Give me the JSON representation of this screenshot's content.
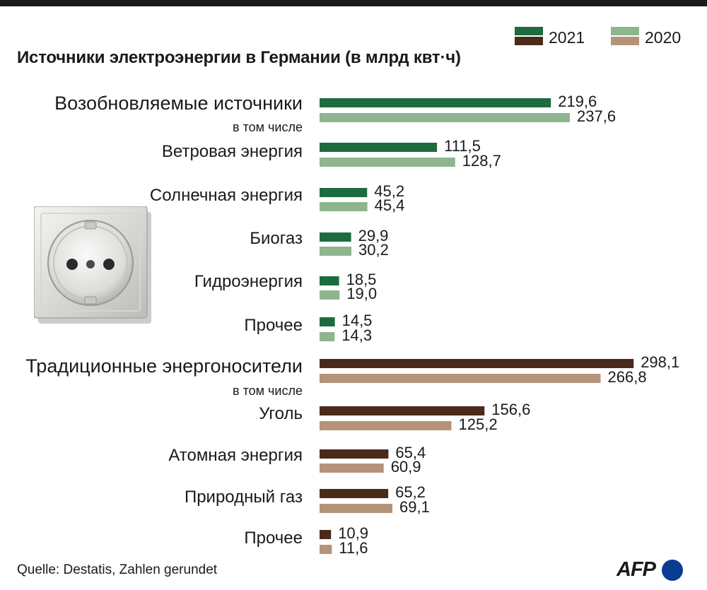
{
  "title": "Источники электроэнергии в Германии (в млрд квт·ч)",
  "legend": {
    "y2021": {
      "label": "2021",
      "color_renewable": "#1d6b3e",
      "color_traditional": "#4a2a1a"
    },
    "y2020": {
      "label": "2020",
      "color_renewable": "#8fb58e",
      "color_traditional": "#b5937a"
    }
  },
  "sub_label": "в том числе",
  "source": "Quelle: Destatis, Zahlen gerundet",
  "logo": "AFP",
  "icons": {
    "socket": "power-socket-icon"
  },
  "chart_data": {
    "type": "bar",
    "orientation": "horizontal",
    "title": "Источники электроэнергии в Германии (в млрд квт·ч)",
    "unit": "млрд квт·ч",
    "series_names": [
      "2021",
      "2020"
    ],
    "groups": [
      {
        "name": "renewable",
        "colors": {
          "2021": "#1d6b3e",
          "2020": "#8fb58e"
        },
        "categories": [
          {
            "label": "Возобновляемые источники",
            "values": {
              "2021": 219.6,
              "2020": 237.6
            },
            "display": {
              "2021": "219,6",
              "2020": "237,6"
            },
            "total": true
          },
          {
            "label": "Ветровая энергия",
            "values": {
              "2021": 111.5,
              "2020": 128.7
            },
            "display": {
              "2021": "111,5",
              "2020": "128,7"
            }
          },
          {
            "label": "Солнечная энергия",
            "values": {
              "2021": 45.2,
              "2020": 45.4
            },
            "display": {
              "2021": "45,2",
              "2020": "45,4"
            }
          },
          {
            "label": "Биогаз",
            "values": {
              "2021": 29.9,
              "2020": 30.2
            },
            "display": {
              "2021": "29,9",
              "2020": "30,2"
            }
          },
          {
            "label": "Гидроэнергия",
            "values": {
              "2021": 18.5,
              "2020": 19.0
            },
            "display": {
              "2021": "18,5",
              "2020": "19,0"
            }
          },
          {
            "label": "Прочее",
            "values": {
              "2021": 14.5,
              "2020": 14.3
            },
            "display": {
              "2021": "14,5",
              "2020": "14,3"
            }
          }
        ]
      },
      {
        "name": "traditional",
        "colors": {
          "2021": "#4a2a1a",
          "2020": "#b5937a"
        },
        "categories": [
          {
            "label": "Традиционные энергоносители",
            "values": {
              "2021": 298.1,
              "2020": 266.8
            },
            "display": {
              "2021": "298,1",
              "2020": "266,8"
            },
            "total": true
          },
          {
            "label": "Уголь",
            "values": {
              "2021": 156.6,
              "2020": 125.2
            },
            "display": {
              "2021": "156,6",
              "2020": "125,2"
            }
          },
          {
            "label": "Атомная энергия",
            "values": {
              "2021": 65.4,
              "2020": 60.9
            },
            "display": {
              "2021": "65,4",
              "2020": "60,9"
            }
          },
          {
            "label": "Природный газ",
            "values": {
              "2021": 65.2,
              "2020": 69.1
            },
            "display": {
              "2021": "65,2",
              "2020": "69,1"
            }
          },
          {
            "label": "Прочее",
            "values": {
              "2021": 10.9,
              "2020": 11.6
            },
            "display": {
              "2021": "10,9",
              "2020": "11,6"
            }
          }
        ]
      }
    ],
    "xlim": [
      0,
      300
    ],
    "grid": false,
    "legend_position": "top-right"
  }
}
